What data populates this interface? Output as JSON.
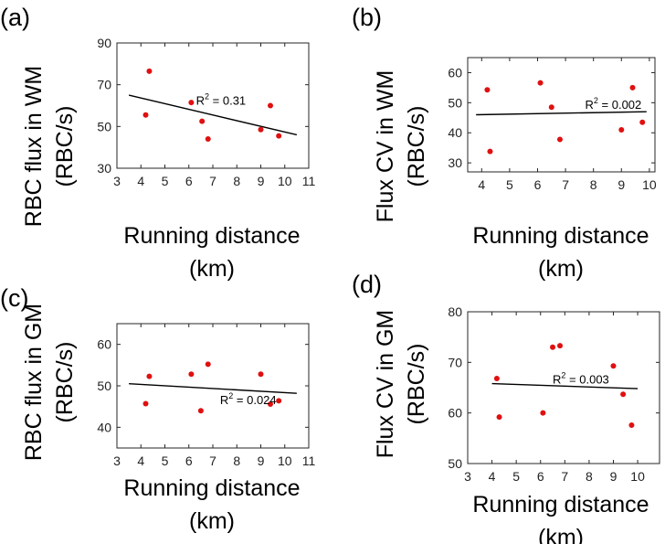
{
  "chart_data": [
    {
      "type": "scatter",
      "panel": "(a)",
      "title": "",
      "xlabel": [
        "Running distance",
        "(km)"
      ],
      "ylabel": [
        "RBC flux in WM",
        "(RBC/s)"
      ],
      "xlim": [
        3,
        11
      ],
      "ylim": [
        30,
        90
      ],
      "xticks": [
        3,
        4,
        5,
        6,
        7,
        8,
        9,
        10,
        11
      ],
      "yticks": [
        30,
        50,
        70,
        90
      ],
      "x": [
        4.2,
        4.35,
        6.1,
        6.55,
        6.8,
        9.0,
        9.4,
        9.75
      ],
      "y": [
        55.5,
        76.5,
        61.5,
        52.5,
        44.0,
        48.5,
        60.0,
        45.5
      ],
      "fit": {
        "x": [
          3.5,
          10.5
        ],
        "y": [
          65.0,
          46.0
        ]
      },
      "r2_label": "R",
      "r2_sup": "2",
      "r2_value": " = 0.31",
      "r2_pos": [
        6.3,
        60.5
      ]
    },
    {
      "type": "scatter",
      "panel": "(b)",
      "title": "",
      "xlabel": [
        "Running distance",
        "(km)"
      ],
      "ylabel": [
        "Flux CV in WM",
        "(RBC/s)"
      ],
      "xlim": [
        3.5,
        10.2
      ],
      "ylim": [
        27,
        65
      ],
      "xticks": [
        4,
        5,
        6,
        7,
        8,
        9,
        10
      ],
      "yticks": [
        30,
        40,
        50,
        60
      ],
      "x": [
        4.2,
        4.3,
        6.1,
        6.5,
        6.8,
        9.0,
        9.4,
        9.75
      ],
      "y": [
        54.3,
        33.8,
        56.6,
        48.5,
        37.8,
        41.0,
        55.0,
        43.5
      ],
      "fit": {
        "x": [
          3.8,
          9.9
        ],
        "y": [
          46.0,
          47.0
        ]
      },
      "r2_label": "R",
      "r2_sup": "2",
      "r2_value": " = 0.002",
      "r2_pos": [
        7.7,
        48.0
      ]
    },
    {
      "type": "scatter",
      "panel": "(c)",
      "title": "",
      "xlabel": [
        "Running distance",
        "(km)"
      ],
      "ylabel": [
        "RBC flux in GM",
        "(RBC/s)"
      ],
      "xlim": [
        3,
        11
      ],
      "ylim": [
        35,
        65
      ],
      "xticks": [
        3,
        4,
        5,
        6,
        7,
        8,
        9,
        10,
        11
      ],
      "yticks": [
        40,
        50,
        60
      ],
      "x": [
        4.2,
        4.35,
        6.1,
        6.5,
        6.8,
        9.0,
        9.4,
        9.75
      ],
      "y": [
        45.7,
        52.3,
        52.8,
        44.0,
        55.2,
        52.8,
        45.6,
        46.4
      ],
      "fit": {
        "x": [
          3.5,
          10.5
        ],
        "y": [
          50.5,
          48.2
        ]
      },
      "r2_label": "R",
      "r2_sup": "2",
      "r2_value": " = 0.024",
      "r2_pos": [
        7.3,
        45.6
      ]
    },
    {
      "type": "scatter",
      "panel": "(d)",
      "title": "",
      "xlabel": [
        "Running distance",
        "(km)"
      ],
      "ylabel": [
        "Flux CV in GM",
        "(RBC/s)"
      ],
      "xlim": [
        3,
        10.9
      ],
      "ylim": [
        50,
        80
      ],
      "xticks": [
        3,
        4,
        5,
        6,
        7,
        8,
        9,
        10
      ],
      "yticks": [
        50,
        60,
        70,
        80
      ],
      "x": [
        4.2,
        4.3,
        6.1,
        6.5,
        6.8,
        9.0,
        9.4,
        9.75
      ],
      "y": [
        66.8,
        59.2,
        60.0,
        73.0,
        73.3,
        69.3,
        63.7,
        57.6
      ],
      "fit": {
        "x": [
          4.0,
          10.0
        ],
        "y": [
          65.8,
          64.8
        ]
      },
      "r2_label": "R",
      "r2_sup": "2",
      "r2_value": " = 0.003",
      "r2_pos": [
        6.5,
        65.8
      ]
    }
  ]
}
